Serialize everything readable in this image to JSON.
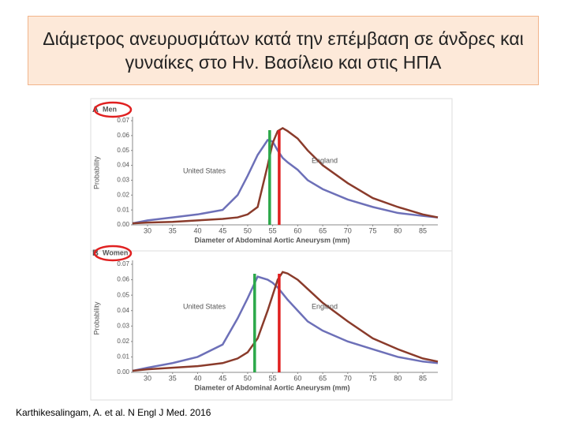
{
  "title": "Διάμετρος ανευρυσμάτων κατά την επέμβαση σε άνδρες και γυναίκες στο Ην. Βασίλειο και στις ΗΠΑ",
  "citation": "Karthikesalingam, A. et al. N Engl J Med. 2016",
  "chart_data": [
    {
      "type": "line",
      "panel": "A",
      "title": "Men",
      "x_label": "Diameter of Abdominal Aortic Aneurysm (mm)",
      "y_label": "Probability",
      "x": [
        27,
        30,
        35,
        40,
        45,
        48,
        50,
        52,
        54,
        55,
        56,
        57,
        58,
        60,
        62,
        65,
        70,
        75,
        80,
        85,
        88
      ],
      "series": [
        {
          "name": "United States",
          "color": "#6d70b8",
          "values": [
            0.001,
            0.003,
            0.005,
            0.007,
            0.01,
            0.02,
            0.033,
            0.047,
            0.057,
            0.056,
            0.05,
            0.045,
            0.042,
            0.037,
            0.03,
            0.024,
            0.017,
            0.012,
            0.008,
            0.006,
            0.005
          ]
        },
        {
          "name": "England",
          "color": "#8a3b2b",
          "values": [
            0.001,
            0.0015,
            0.002,
            0.003,
            0.004,
            0.005,
            0.007,
            0.012,
            0.04,
            0.055,
            0.063,
            0.065,
            0.063,
            0.058,
            0.05,
            0.04,
            0.028,
            0.018,
            0.012,
            0.007,
            0.005
          ]
        }
      ],
      "reference_lines": [
        {
          "x": 54.4,
          "color": "#2ca84a"
        },
        {
          "x": 56.3,
          "color": "#e02020"
        }
      ],
      "xlim": [
        27,
        88
      ],
      "ylim": [
        0,
        0.07
      ],
      "xticks": [
        30,
        35,
        40,
        45,
        50,
        55,
        60,
        65,
        70,
        75,
        80,
        85
      ],
      "yticks": [
        {
          "value": 0,
          "label": "0.00"
        },
        0.01,
        0.02,
        0.03,
        0.04,
        0.05,
        0.06,
        0.07
      ]
    },
    {
      "type": "line",
      "panel": "B",
      "title": "Women",
      "x_label": "Diameter of Abdominal Aortic Aneurysm (mm)",
      "y_label": "Probability",
      "x": [
        27,
        30,
        35,
        40,
        45,
        48,
        50,
        52,
        54,
        55,
        56,
        57,
        58,
        60,
        62,
        65,
        70,
        75,
        80,
        85,
        88
      ],
      "series": [
        {
          "name": "United States",
          "color": "#6d70b8",
          "values": [
            0.001,
            0.003,
            0.006,
            0.01,
            0.018,
            0.035,
            0.048,
            0.062,
            0.06,
            0.058,
            0.055,
            0.051,
            0.047,
            0.04,
            0.033,
            0.027,
            0.02,
            0.015,
            0.01,
            0.007,
            0.006
          ]
        },
        {
          "name": "England",
          "color": "#8a3b2b",
          "values": [
            0.001,
            0.002,
            0.003,
            0.004,
            0.006,
            0.009,
            0.013,
            0.022,
            0.04,
            0.05,
            0.06,
            0.065,
            0.064,
            0.06,
            0.054,
            0.045,
            0.033,
            0.022,
            0.015,
            0.009,
            0.007
          ]
        }
      ],
      "reference_lines": [
        {
          "x": 51.4,
          "color": "#2ca84a"
        },
        {
          "x": 56.3,
          "color": "#e02020"
        }
      ],
      "xlim": [
        27,
        88
      ],
      "ylim": [
        0,
        0.07
      ],
      "xticks": [
        30,
        35,
        40,
        45,
        50,
        55,
        60,
        65,
        70,
        75,
        80,
        85
      ],
      "yticks": [
        {
          "value": 0,
          "label": "0.00"
        },
        0.01,
        0.02,
        0.03,
        0.04,
        0.05,
        0.06,
        0.07
      ]
    }
  ]
}
